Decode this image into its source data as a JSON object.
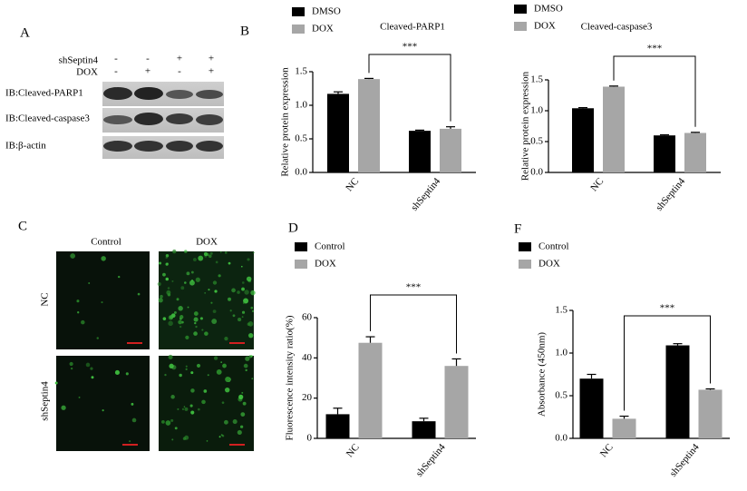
{
  "panel_a": {
    "label": "A",
    "rows": [
      {
        "name": "shSeptin4",
        "signs": [
          "-",
          "-",
          "+",
          "+"
        ]
      },
      {
        "name": "DOX",
        "signs": [
          "-",
          "+",
          "-",
          "+"
        ]
      }
    ],
    "blots": [
      "IB:Cleaved-PARP1",
      "IB:Cleaved-caspase3",
      "IB:β-actin"
    ]
  },
  "panel_c": {
    "label": "C",
    "columns": [
      "Control",
      "DOX"
    ],
    "rows": [
      "NC",
      "shSeptin4"
    ]
  },
  "chart_data": [
    {
      "type": "bar",
      "panel_label": "B",
      "title": "Cleaved-PARP1",
      "ylabel": "Relative protein expression",
      "categories": [
        "NC",
        "shSeptin4"
      ],
      "series": [
        {
          "name": "DMSO",
          "color": "#000000",
          "values": [
            1.17,
            0.62
          ],
          "errors": [
            0.03,
            0.01
          ]
        },
        {
          "name": "DOX",
          "color": "#a6a6a6",
          "values": [
            1.39,
            0.65
          ],
          "errors": [
            0.01,
            0.03
          ]
        }
      ],
      "ylim": [
        0,
        1.5
      ],
      "yticks": [
        {
          "value": 0,
          "label": "0.0"
        },
        0.5,
        {
          "value": 1,
          "label": "1.0"
        },
        1.5
      ],
      "annotation": "***",
      "legend": "top-left"
    },
    {
      "type": "bar",
      "title": "Cleaved-caspase3",
      "ylabel": "Relative protein expression",
      "categories": [
        "NC",
        "shSeptin4"
      ],
      "series": [
        {
          "name": "DMSO",
          "color": "#000000",
          "values": [
            1.04,
            0.6
          ],
          "errors": [
            0.01,
            0.01
          ]
        },
        {
          "name": "DOX",
          "color": "#a6a6a6",
          "values": [
            1.39,
            0.64
          ],
          "errors": [
            0.01,
            0.01
          ]
        }
      ],
      "ylim": [
        0,
        1.5
      ],
      "yticks": [
        {
          "value": 0,
          "label": "0.0"
        },
        0.5,
        {
          "value": 1,
          "label": "1.0"
        },
        1.5
      ],
      "annotation": "***",
      "legend": "top-left"
    },
    {
      "type": "bar",
      "panel_label": "D",
      "ylabel": "Fluorescence intensity ratio(%)",
      "categories": [
        "NC",
        "shSeptin4"
      ],
      "series": [
        {
          "name": "Control",
          "color": "#000000",
          "values": [
            12,
            8.5
          ],
          "errors": [
            3,
            1.5
          ]
        },
        {
          "name": "DOX",
          "color": "#a6a6a6",
          "values": [
            47.5,
            36
          ],
          "errors": [
            3,
            3.5
          ]
        }
      ],
      "ylim": [
        0,
        60
      ],
      "yticks": [
        0,
        20,
        40,
        60
      ],
      "annotation": "***",
      "legend": "top-left"
    },
    {
      "type": "bar",
      "panel_label": "F",
      "ylabel": "Absorbance (450nm)",
      "categories": [
        "NC",
        "shSeptin4"
      ],
      "series": [
        {
          "name": "Control",
          "color": "#000000",
          "values": [
            0.7,
            1.09
          ],
          "errors": [
            0.05,
            0.02
          ]
        },
        {
          "name": "DOX",
          "color": "#a6a6a6",
          "values": [
            0.23,
            0.57
          ],
          "errors": [
            0.03,
            0.01
          ]
        }
      ],
      "ylim": [
        0,
        1.5
      ],
      "yticks": [
        {
          "value": 0,
          "label": "0.0"
        },
        0.5,
        {
          "value": 1,
          "label": "1.0"
        },
        1.5
      ],
      "annotation": "***",
      "legend": "top-left"
    }
  ]
}
